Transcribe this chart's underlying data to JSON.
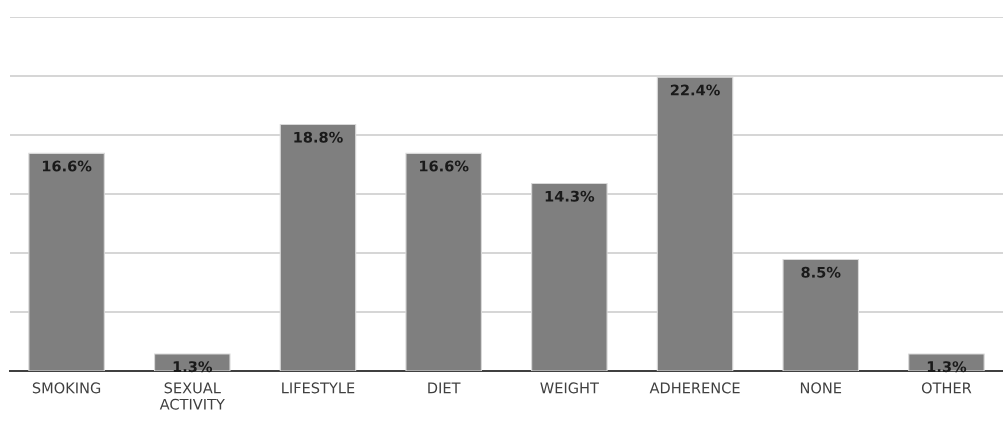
{
  "chart_data": {
    "type": "bar",
    "categories": [
      "SMOKING",
      "SEXUAL\nACTIVITY",
      "LIFESTYLE",
      "DIET",
      "WEIGHT",
      "ADHERENCE",
      "NONE",
      "OTHER"
    ],
    "values": [
      16.6,
      1.3,
      18.8,
      16.6,
      14.3,
      22.4,
      8.5,
      1.3
    ],
    "value_labels": [
      "16.6%",
      "1.3%",
      "18.8%",
      "16.6%",
      "14.3%",
      "22.4%",
      "8.5%",
      "1.3%"
    ],
    "color": "#7f7f7f",
    "ylim": [
      0,
      27
    ],
    "yticks": [
      {
        "value": 0,
        "label": null
      },
      {
        "value": 4.5,
        "label": null
      },
      {
        "value": 9,
        "label": null
      },
      {
        "value": 13.5,
        "label": null
      },
      {
        "value": 18,
        "label": null
      },
      {
        "value": 22.5,
        "label": null
      },
      {
        "value": 27,
        "label": null
      }
    ],
    "tick_labels": "x",
    "grid": "y"
  }
}
